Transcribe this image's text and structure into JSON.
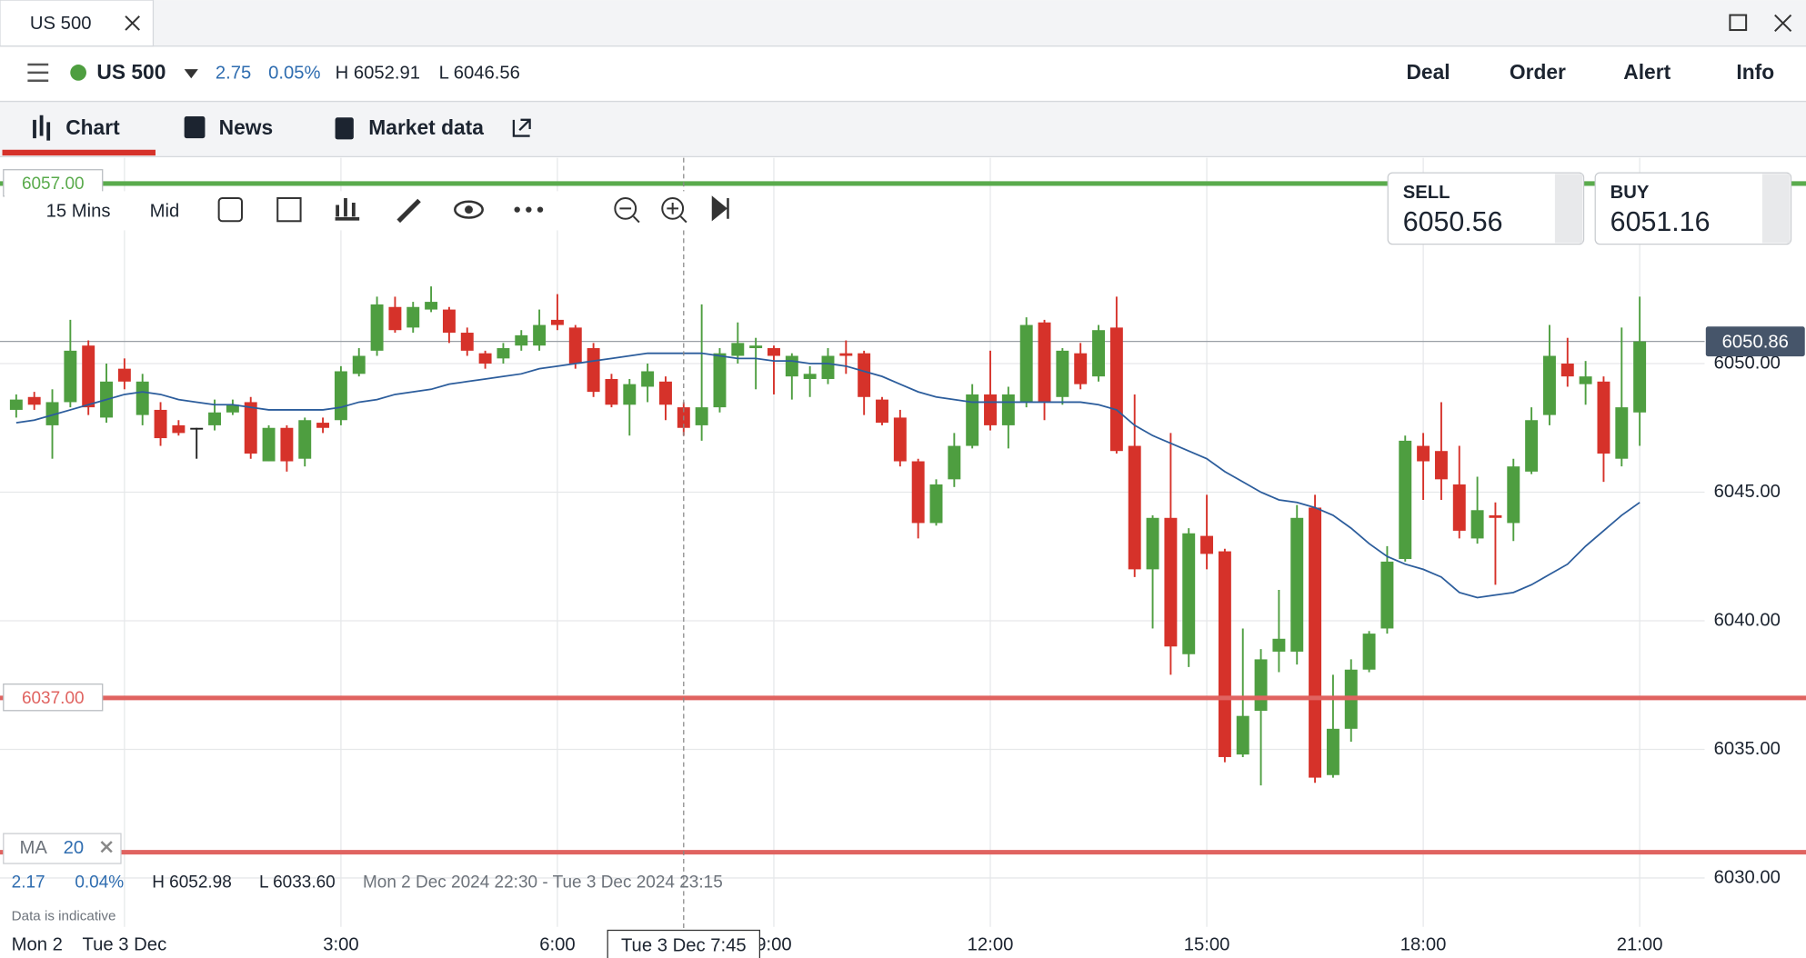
{
  "window": {
    "tab": "US 500"
  },
  "header": {
    "symbol": "US 500",
    "change": "2.75",
    "change_pct": "0.05%",
    "high": "H 6052.91",
    "low": "L 6046.56",
    "actions": [
      "Deal",
      "Order",
      "Alert",
      "Info"
    ]
  },
  "tabs": [
    "Chart",
    "News",
    "Market data"
  ],
  "toolbar": {
    "interval": "15 Mins",
    "price_type": "Mid"
  },
  "quotes": {
    "sell_label": "SELL",
    "sell": "6050.56",
    "buy_label": "BUY",
    "buy": "6051.16"
  },
  "indicator": {
    "name": "MA",
    "period": "20"
  },
  "info": {
    "change": "2.17",
    "change_pct": "0.04%",
    "high": "H 6052.98",
    "low": "L 6033.60",
    "range": "Mon 2 Dec 2024 22:30 - Tue 3 Dec 2024 23:15",
    "note": "Data is indicative"
  },
  "chart_data": {
    "type": "candlestick",
    "open": [
      6048.2,
      6048.7,
      6047.6,
      6048.5,
      6050.7,
      6047.9,
      6049.8,
      6048.0,
      6048.2,
      6047.6,
      6047.5,
      6047.6,
      6048.1,
      6048.5,
      6046.2,
      6047.5,
      6046.3,
      6047.7,
      6047.8,
      6049.6,
      6050.5,
      6052.2,
      6051.4,
      6052.1,
      6052.1,
      6051.2,
      6050.4,
      6050.2,
      6050.7,
      6050.7,
      6051.7,
      6051.4,
      6050.6,
      6049.4,
      6048.4,
      6049.1,
      6049.3,
      6048.3,
      6047.6,
      6048.3,
      6050.3,
      6050.6,
      6050.6,
      6049.5,
      6049.4,
      6049.4,
      6050.4,
      6050.4,
      6048.6,
      6047.9,
      6046.2,
      6043.8,
      6045.5,
      6046.8,
      6048.8,
      6047.6,
      6048.5,
      6051.6,
      6048.7,
      6050.4,
      6049.5,
      6051.4,
      6046.8,
      6042.0,
      6044.0,
      6038.7,
      6043.3,
      6042.7,
      6034.8,
      6036.5,
      6038.8,
      6038.8,
      6044.4,
      6034.0,
      6035.8,
      6038.1,
      6039.7,
      6042.4,
      6046.8,
      6046.6,
      6045.3,
      6043.2,
      6044.1,
      6043.8,
      6045.8,
      6048.0,
      6050.0,
      6049.2,
      6049.3,
      6046.3,
      6048.1
    ],
    "high": [
      6048.8,
      6048.9,
      6049.0,
      6051.7,
      6050.9,
      6050.0,
      6050.2,
      6049.6,
      6048.5,
      6047.8,
      6047.5,
      6048.6,
      6048.6,
      6048.7,
      6047.6,
      6047.6,
      6047.9,
      6047.9,
      6049.9,
      6050.6,
      6052.6,
      6052.6,
      6052.4,
      6053.0,
      6052.2,
      6051.4,
      6050.5,
      6050.8,
      6051.3,
      6052.1,
      6052.7,
      6051.5,
      6050.8,
      6049.6,
      6049.4,
      6050.0,
      6049.5,
      6048.5,
      6052.3,
      6050.6,
      6051.6,
      6051.0,
      6050.7,
      6050.4,
      6049.9,
      6050.6,
      6050.9,
      6050.5,
      6048.7,
      6048.2,
      6046.3,
      6045.5,
      6047.3,
      6049.2,
      6050.5,
      6049.1,
      6051.8,
      6051.7,
      6050.6,
      6050.8,
      6051.5,
      6052.6,
      6048.8,
      6044.1,
      6047.3,
      6043.6,
      6044.9,
      6042.8,
      6039.7,
      6038.9,
      6041.2,
      6044.5,
      6044.9,
      6037.9,
      6038.5,
      6039.6,
      6042.9,
      6047.2,
      6047.3,
      6048.5,
      6046.8,
      6045.6,
      6044.6,
      6046.3,
      6048.3,
      6051.5,
      6051.0,
      6050.1,
      6049.5,
      6051.4,
      6052.6
    ],
    "low": [
      6047.9,
      6048.2,
      6046.3,
      6048.3,
      6048.0,
      6047.7,
      6049.0,
      6047.6,
      6046.8,
      6047.2,
      6046.3,
      6047.4,
      6048.0,
      6046.3,
      6046.2,
      6045.8,
      6046.0,
      6047.3,
      6047.6,
      6049.5,
      6050.3,
      6051.2,
      6051.2,
      6052.0,
      6050.8,
      6050.3,
      6049.8,
      6050.0,
      6050.5,
      6050.5,
      6051.3,
      6049.8,
      6048.7,
      6048.3,
      6047.2,
      6048.5,
      6047.8,
      6047.2,
      6047.0,
      6048.1,
      6050.0,
      6049.0,
      6048.8,
      6048.6,
      6048.7,
      6049.2,
      6049.6,
      6048.0,
      6047.6,
      6046.0,
      6043.2,
      6043.7,
      6045.2,
      6046.7,
      6047.4,
      6046.7,
      6048.3,
      6047.8,
      6048.4,
      6049.0,
      6049.3,
      6046.5,
      6041.7,
      6039.7,
      6037.9,
      6038.2,
      6042.0,
      6034.5,
      6034.7,
      6033.6,
      6038.0,
      6038.3,
      6033.7,
      6033.9,
      6035.3,
      6038.0,
      6039.5,
      6042.3,
      6044.7,
      6044.7,
      6043.2,
      6043.0,
      6041.4,
      6043.1,
      6045.7,
      6047.6,
      6049.1,
      6048.4,
      6045.4,
      6046.0,
      6046.8
    ],
    "close": [
      6048.6,
      6048.4,
      6048.5,
      6050.5,
      6048.3,
      6049.3,
      6049.3,
      6049.3,
      6047.1,
      6047.3,
      6047.5,
      6048.1,
      6048.4,
      6046.5,
      6047.5,
      6046.2,
      6047.8,
      6047.5,
      6049.7,
      6050.3,
      6052.3,
      6051.3,
      6052.2,
      6052.4,
      6051.2,
      6050.5,
      6050.0,
      6050.6,
      6051.1,
      6051.5,
      6051.5,
      6050.0,
      6048.9,
      6048.4,
      6049.2,
      6049.7,
      6048.4,
      6047.5,
      6048.3,
      6050.4,
      6050.8,
      6050.7,
      6050.3,
      6050.3,
      6049.6,
      6050.3,
      6050.3,
      6048.7,
      6047.7,
      6046.2,
      6043.8,
      6045.3,
      6046.8,
      6048.8,
      6047.6,
      6048.8,
      6051.5,
      6048.5,
      6050.5,
      6049.2,
      6051.3,
      6046.6,
      6042.0,
      6044.0,
      6039.0,
      6043.4,
      6042.6,
      6034.7,
      6036.3,
      6038.5,
      6039.3,
      6044.0,
      6033.9,
      6035.8,
      6038.1,
      6039.5,
      6042.3,
      6047.0,
      6046.2,
      6045.5,
      6043.5,
      6044.3,
      6044.0,
      6046.0,
      6047.8,
      6050.3,
      6049.5,
      6049.5,
      6046.5,
      6048.3,
      6050.86
    ],
    "ma_values": [
      6047.7,
      6047.8,
      6048.0,
      6048.2,
      6048.4,
      6048.6,
      6048.8,
      6048.9,
      6048.8,
      6048.6,
      6048.5,
      6048.4,
      6048.4,
      6048.3,
      6048.2,
      6048.2,
      6048.2,
      6048.2,
      6048.3,
      6048.5,
      6048.6,
      6048.8,
      6048.9,
      6049.0,
      6049.2,
      6049.3,
      6049.4,
      6049.5,
      6049.6,
      6049.8,
      6049.9,
      6050.0,
      6050.1,
      6050.2,
      6050.3,
      6050.4,
      6050.4,
      6050.4,
      6050.4,
      6050.3,
      6050.2,
      6050.2,
      6050.1,
      6050.1,
      6050.0,
      6050.0,
      6049.9,
      6049.7,
      6049.5,
      6049.2,
      6048.9,
      6048.7,
      6048.6,
      6048.5,
      6048.5,
      6048.5,
      6048.5,
      6048.5,
      6048.5,
      6048.5,
      6048.4,
      6048.2,
      6047.6,
      6047.2,
      6046.9,
      6046.6,
      6046.3,
      6045.8,
      6045.4,
      6045.0,
      6044.7,
      6044.6,
      6044.4,
      6044.1,
      6043.6,
      6043.0,
      6042.5,
      6042.2,
      6042.0,
      6041.7,
      6041.1,
      6040.9,
      6041.0,
      6041.1,
      6041.4,
      6041.8,
      6042.2,
      6042.9,
      6043.5,
      6044.1,
      6044.6
    ],
    "colors": {
      "up": "#4e9e40",
      "down": "#d6322a",
      "flat": "#222222",
      "ma": "#2c5d9c"
    },
    "ylim": [
      6028.1,
      6058.0
    ],
    "yticks": [
      {
        "value": 6030,
        "label": "6030.00"
      },
      {
        "value": 6035,
        "label": "6035.00"
      },
      {
        "value": 6040,
        "label": "6040.00"
      },
      {
        "value": 6045,
        "label": "6045.00"
      },
      {
        "value": 6050,
        "label": "6050.00"
      }
    ],
    "xlim": [
      -0.9,
      93.6
    ],
    "x_start_label": "Mon 2",
    "xticks": [
      {
        "value": 6,
        "label": "Tue 3 Dec"
      },
      {
        "value": 18,
        "label": "3:00"
      },
      {
        "value": 30,
        "label": "6:00"
      },
      {
        "value": 42,
        "label": "9:00"
      },
      {
        "value": 54,
        "label": "12:00"
      },
      {
        "value": 66,
        "label": "15:00"
      },
      {
        "value": 78,
        "label": "18:00"
      },
      {
        "value": 90,
        "label": "21:00"
      }
    ],
    "crosshair": {
      "value": 37,
      "label": "Tue 3 Dec 7:45"
    },
    "levels": [
      {
        "value": 6057,
        "label": "6057.00",
        "color": "#5aab4c"
      },
      {
        "value": 6037,
        "label": "6037.00",
        "color": "#e06360"
      },
      {
        "value": 6031,
        "color": "#e06360"
      }
    ],
    "last_price": 6050.86,
    "grid": true
  }
}
